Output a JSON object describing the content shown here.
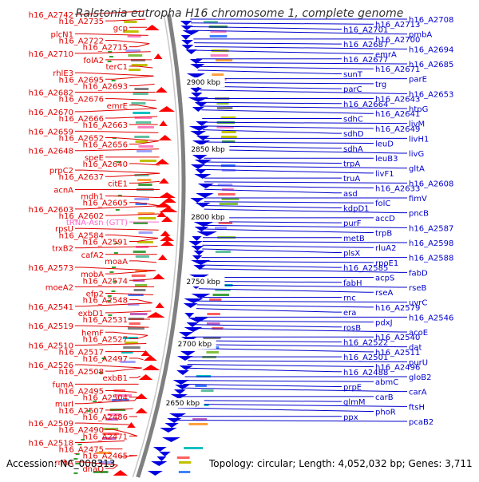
{
  "title": "Ralstonia eutropha H16 chromosome 1, complete genome",
  "footer": {
    "accession": "Accession: NC_008313",
    "topology": "Topology: circular; Length: 4,052,032 bp; Genes: 3,711"
  },
  "colors": {
    "left_label": "#e00000",
    "right_label": "#0000cc",
    "trna_label": "#ff66cc",
    "backbone": "#808080",
    "forward_feature": "#ff0000",
    "reverse_feature": "#0000e0",
    "tick_label": "#000000"
  },
  "scale": {
    "ticks": [
      "2900 kbp",
      "2850 kbp",
      "2800 kbp",
      "2750 kbp",
      "2700 kbp",
      "2650 kbp"
    ]
  },
  "left_labels": [
    "h16_A2742",
    "h16_A2735",
    "gcp",
    "plcN1",
    "h16_A2722",
    "h16_A2715",
    "h16_A2710",
    "folA2",
    "terC1",
    "rhlE3",
    "h16_A2695",
    "h16_A2693",
    "h16_A2682",
    "h16_A2676",
    "emrE",
    "h16_A2670",
    "h16_A2666",
    "h16_A2663",
    "h16_A2659",
    "h16_A2652",
    "h16_A2656",
    "h16_A2648",
    "speE",
    "h16_A2640",
    "prpC2",
    "h16_A2637",
    "citE1",
    "acnA",
    "mdh1",
    "h16_A2605",
    "h16_A2603",
    "h16_A2602",
    "tRNA-Asn (GTT)",
    "rpsU",
    "h16_A2584",
    "h16_A2591",
    "trxB2",
    "cafA2",
    "moaA",
    "h16_A2573",
    "mobA",
    "h16_A2574",
    "moeA2",
    "efp2",
    "h16_A2548",
    "h16_A2541",
    "exbD1",
    "h16_A2531",
    "h16_A2519",
    "hemF",
    "h16_A2527",
    "h16_A2510",
    "h16_A2517",
    "h16_A2497",
    "h16_A2526",
    "h16_A2508",
    "exbB1",
    "fumA",
    "h16_A2495",
    "h16_A2504",
    "murI",
    "h16_A2507",
    "h16_A2486",
    "h16_A2509",
    "h16_A2490",
    "h16_A2471",
    "h16_A2518",
    "h16_A2475",
    "h16_A2465",
    "rnhA",
    "dnaQ"
  ],
  "right_labels": [
    "h16_A2708",
    "h16_A2713",
    "h16_A2701",
    "pmbA",
    "h16_A2700",
    "h16_A2687",
    "h16_A2694",
    "emrA",
    "h16_A2677",
    "h16_A2685",
    "h16_A2671",
    "sunT",
    "parE",
    "trg",
    "parC",
    "h16_A2653",
    "h16_A2643",
    "h16_A2664",
    "htpG",
    "h16_A2641",
    "sdhC",
    "livM",
    "h16_A2649",
    "sdhD",
    "livH1",
    "leuD",
    "sdhA",
    "livG",
    "leuB3",
    "trpA",
    "gltA",
    "livF1",
    "truA",
    "h16_A2608",
    "h16_A2633",
    "asd",
    "fimV",
    "folC",
    "kdpD1",
    "pncB",
    "accD",
    "purF",
    "h16_A2587",
    "trpB",
    "metB",
    "h16_A2598",
    "rluA2",
    "plsX",
    "h16_A2588",
    "rpoE1",
    "h16_A2585",
    "fabD",
    "acpS",
    "fabH",
    "rseB",
    "rseA",
    "rnc",
    "uvrC",
    "h16_A2579",
    "era",
    "h16_A2546",
    "pdxJ",
    "rosB",
    "acoE",
    "h16_A2540",
    "h16_A2522",
    "dat",
    "h16_A2511",
    "h16_A2501",
    "purU",
    "h16_A2496",
    "h16_A2488",
    "gloB2",
    "abmC",
    "prpE",
    "carA",
    "carB",
    "glmM",
    "ftsH",
    "phoR",
    "ppx",
    "pcaB2"
  ]
}
